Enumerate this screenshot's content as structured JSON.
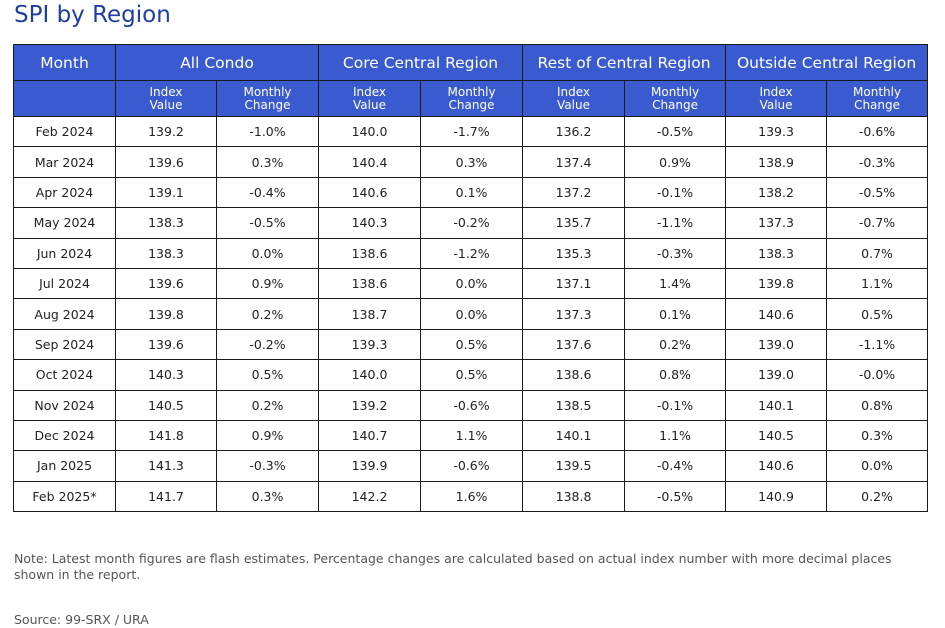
{
  "title": "SPI by Region",
  "header": {
    "month": "Month",
    "groups": [
      "All Condo",
      "Core Central Region",
      "Rest of Central Region",
      "Outside Central Region"
    ],
    "sub_index_l1": "Index",
    "sub_index_l2": "Value",
    "sub_change_l1": "Monthly",
    "sub_change_l2": "Change"
  },
  "rows": [
    {
      "month": "Feb 2024",
      "cells": [
        "139.2",
        "-1.0%",
        "140.0",
        "-1.7%",
        "136.2",
        "-0.5%",
        "139.3",
        "-0.6%"
      ]
    },
    {
      "month": "Mar 2024",
      "cells": [
        "139.6",
        "0.3%",
        "140.4",
        "0.3%",
        "137.4",
        "0.9%",
        "138.9",
        "-0.3%"
      ]
    },
    {
      "month": "Apr 2024",
      "cells": [
        "139.1",
        "-0.4%",
        "140.6",
        "0.1%",
        "137.2",
        "-0.1%",
        "138.2",
        "-0.5%"
      ]
    },
    {
      "month": "May 2024",
      "cells": [
        "138.3",
        "-0.5%",
        "140.3",
        "-0.2%",
        "135.7",
        "-1.1%",
        "137.3",
        "-0.7%"
      ]
    },
    {
      "month": "Jun 2024",
      "cells": [
        "138.3",
        "0.0%",
        "138.6",
        "-1.2%",
        "135.3",
        "-0.3%",
        "138.3",
        "0.7%"
      ]
    },
    {
      "month": "Jul 2024",
      "cells": [
        "139.6",
        "0.9%",
        "138.6",
        "0.0%",
        "137.1",
        "1.4%",
        "139.8",
        "1.1%"
      ]
    },
    {
      "month": "Aug 2024",
      "cells": [
        "139.8",
        "0.2%",
        "138.7",
        "0.0%",
        "137.3",
        "0.1%",
        "140.6",
        "0.5%"
      ]
    },
    {
      "month": "Sep 2024",
      "cells": [
        "139.6",
        "-0.2%",
        "139.3",
        "0.5%",
        "137.6",
        "0.2%",
        "139.0",
        "-1.1%"
      ]
    },
    {
      "month": "Oct 2024",
      "cells": [
        "140.3",
        "0.5%",
        "140.0",
        "0.5%",
        "138.6",
        "0.8%",
        "139.0",
        "-0.0%"
      ]
    },
    {
      "month": "Nov 2024",
      "cells": [
        "140.5",
        "0.2%",
        "139.2",
        "-0.6%",
        "138.5",
        "-0.1%",
        "140.1",
        "0.8%"
      ]
    },
    {
      "month": "Dec 2024",
      "cells": [
        "141.8",
        "0.9%",
        "140.7",
        "1.1%",
        "140.1",
        "1.1%",
        "140.5",
        "0.3%"
      ]
    },
    {
      "month": "Jan 2025",
      "cells": [
        "141.3",
        "-0.3%",
        "139.9",
        "-0.6%",
        "139.5",
        "-0.4%",
        "140.6",
        "0.0%"
      ]
    },
    {
      "month": "Feb 2025*",
      "cells": [
        "141.7",
        "0.3%",
        "142.2",
        "1.6%",
        "138.8",
        "-0.5%",
        "140.9",
        "0.2%"
      ]
    }
  ],
  "note": "Note: Latest month figures are flash estimates. Percentage changes are calculated based on actual index number with more decimal places shown in the report.",
  "source": "Source: 99-SRX / URA",
  "colors": {
    "title": "#1f3fa0",
    "header_bg": "#3a5bd0",
    "header_text": "#ffffff"
  }
}
